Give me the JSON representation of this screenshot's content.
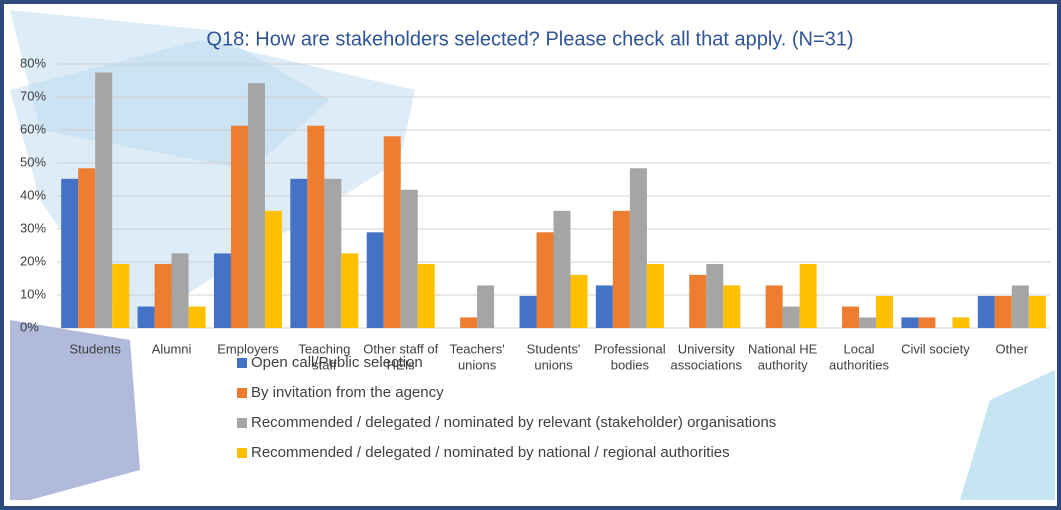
{
  "chart_data": {
    "type": "bar",
    "title": "Q18: How are stakeholders selected? Please check all that apply. (N=31)",
    "categories": [
      [
        "Students"
      ],
      [
        "Alumni"
      ],
      [
        "Employers"
      ],
      [
        "Teaching",
        "staff"
      ],
      [
        "Other staff of",
        "HEIs"
      ],
      [
        "Teachers'",
        "unions"
      ],
      [
        "Students'",
        "unions"
      ],
      [
        "Professional",
        "bodies"
      ],
      [
        "University",
        "associations"
      ],
      [
        "National HE",
        "authority"
      ],
      [
        "Local",
        "authorities"
      ],
      [
        "Civil society"
      ],
      [
        "Other"
      ]
    ],
    "series": [
      {
        "name": "Open call/Public selection",
        "color": "#4472c4",
        "values": [
          45.2,
          6.5,
          22.6,
          45.2,
          29.0,
          0,
          9.7,
          12.9,
          0,
          0,
          0,
          3.2,
          9.7
        ]
      },
      {
        "name": "By invitation from the agency",
        "color": "#ed7d31",
        "values": [
          48.4,
          19.4,
          61.3,
          61.3,
          58.1,
          3.2,
          29.0,
          35.5,
          16.1,
          12.9,
          6.5,
          3.2,
          9.7
        ]
      },
      {
        "name": "Recommended / delegated / nominated by relevant (stakeholder) organisations",
        "color": "#a5a5a5",
        "values": [
          77.4,
          22.6,
          74.2,
          45.2,
          41.9,
          12.9,
          35.5,
          48.4,
          19.4,
          6.5,
          3.2,
          0,
          12.9
        ]
      },
      {
        "name": "Recommended / delegated / nominated by national / regional authorities",
        "color": "#ffc000",
        "values": [
          19.4,
          6.5,
          35.5,
          22.6,
          19.4,
          0,
          16.1,
          19.4,
          12.9,
          19.4,
          9.7,
          3.2,
          9.7
        ]
      }
    ],
    "ylim": [
      0,
      80
    ],
    "yticks": [
      {
        "value": 0,
        "label": "0%"
      },
      {
        "value": 10,
        "label": "10%"
      },
      {
        "value": 20,
        "label": "20%"
      },
      {
        "value": 30,
        "label": "30%"
      },
      {
        "value": 40,
        "label": "40%"
      },
      {
        "value": 50,
        "label": "50%"
      },
      {
        "value": 60,
        "label": "60%"
      },
      {
        "value": 70,
        "label": "70%"
      },
      {
        "value": 80,
        "label": "80%"
      }
    ],
    "grid": true
  }
}
